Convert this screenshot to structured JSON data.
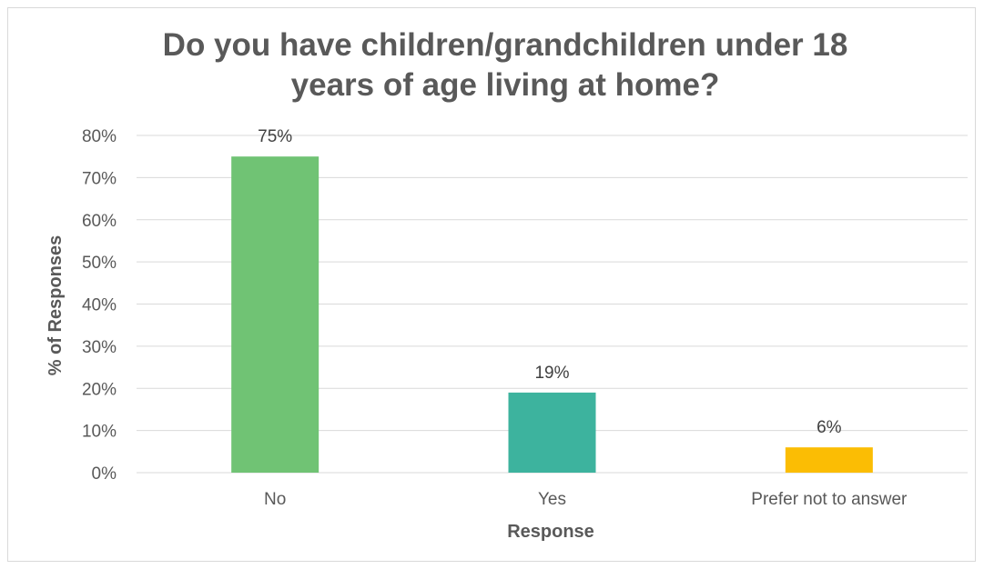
{
  "chart_data": {
    "type": "bar",
    "title": "Do you have children/grandchildren under 18\nyears of age living at home?",
    "xlabel": "Response",
    "ylabel": "% of Responses",
    "categories": [
      "No",
      "Yes",
      "Prefer not to answer"
    ],
    "values": [
      75,
      19,
      6
    ],
    "data_labels": [
      "75%",
      "19%",
      "6%"
    ],
    "colors": [
      "#70c374",
      "#3db39e",
      "#fbbd04"
    ],
    "ylim": [
      0,
      80
    ],
    "y_ticks": [
      "0%",
      "10%",
      "20%",
      "30%",
      "40%",
      "50%",
      "60%",
      "70%",
      "80%"
    ],
    "grid": true,
    "legend": "none"
  }
}
